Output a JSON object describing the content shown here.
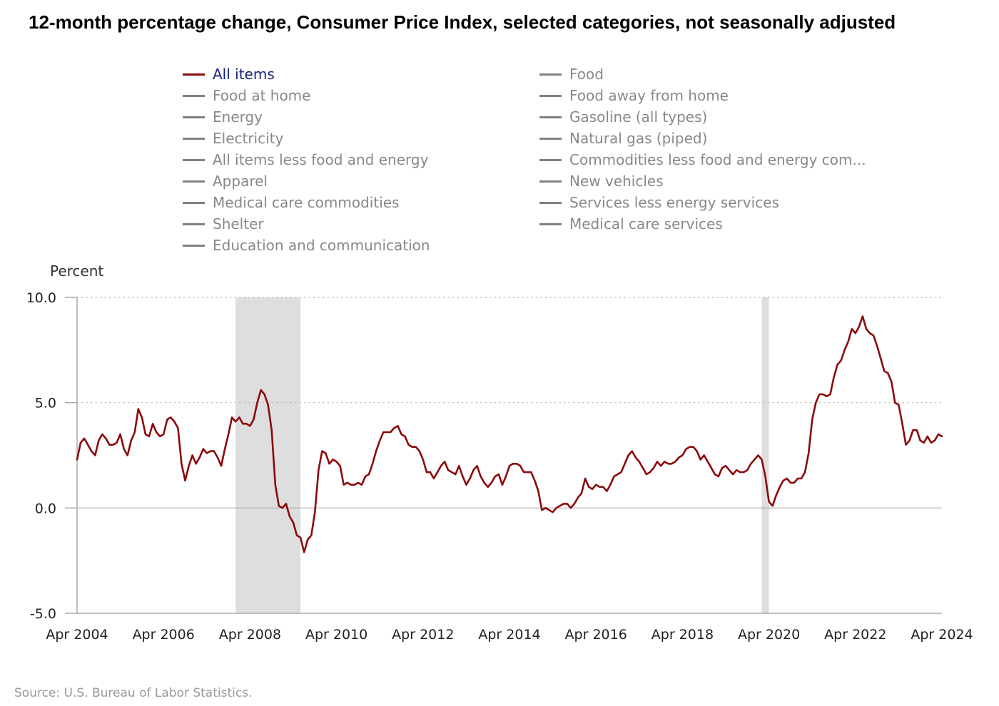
{
  "chart_data": {
    "type": "line",
    "title": "12-month percentage change, Consumer Price Index, selected categories, not seasonally adjusted",
    "ylabel": "Percent",
    "ylim": [
      -5.0,
      10.0
    ],
    "yticks": [
      "10.0",
      "5.0",
      "0.0",
      "-5.0"
    ],
    "xtick_labels": [
      "Apr 2004",
      "Apr 2006",
      "Apr 2008",
      "Apr 2010",
      "Apr 2012",
      "Apr 2014",
      "Apr 2016",
      "Apr 2018",
      "Apr 2020",
      "Apr 2022",
      "Apr 2024"
    ],
    "x_range": [
      "2004-04",
      "2024-04"
    ],
    "grid": "dotted horizontal lines at 5.0 and 10.0; solid line at 0.0",
    "legend_position": "top",
    "recessions": [
      {
        "start": "2007-12",
        "end": "2009-06"
      },
      {
        "start": "2020-02",
        "end": "2020-04"
      }
    ],
    "colors": {
      "active_series": "#8b0a0a",
      "inactive_series": "#808080",
      "active_label": "#1a237e",
      "inactive_label": "#888888",
      "recession_band": "#dedede",
      "axis": "#a8a8a8"
    },
    "legend": [
      {
        "name": "All items",
        "active": true
      },
      {
        "name": "Food at home",
        "active": false
      },
      {
        "name": "Energy",
        "active": false
      },
      {
        "name": "Electricity",
        "active": false
      },
      {
        "name": "All items less food and energy",
        "active": false
      },
      {
        "name": "Apparel",
        "active": false
      },
      {
        "name": "Medical care commodities",
        "active": false
      },
      {
        "name": "Shelter",
        "active": false
      },
      {
        "name": "Education and communication",
        "active": false
      },
      {
        "name": "Food",
        "active": false
      },
      {
        "name": "Food away from home",
        "active": false
      },
      {
        "name": "Gasoline (all types)",
        "active": false
      },
      {
        "name": "Natural gas (piped)",
        "active": false
      },
      {
        "name": "Commodities less food and energy com...",
        "active": false
      },
      {
        "name": "New vehicles",
        "active": false
      },
      {
        "name": "Services less energy services",
        "active": false
      },
      {
        "name": "Medical care services",
        "active": false
      }
    ],
    "series": [
      {
        "name": "All items",
        "start": "2004-04",
        "frequency": "monthly",
        "values": [
          2.3,
          3.1,
          3.3,
          3.0,
          2.7,
          2.5,
          3.2,
          3.5,
          3.3,
          3.0,
          3.0,
          3.1,
          3.5,
          2.8,
          2.5,
          3.2,
          3.6,
          4.7,
          4.3,
          3.5,
          3.4,
          4.0,
          3.6,
          3.4,
          3.5,
          4.2,
          4.3,
          4.1,
          3.8,
          2.1,
          1.3,
          2.0,
          2.5,
          2.1,
          2.4,
          2.8,
          2.6,
          2.7,
          2.7,
          2.4,
          2.0,
          2.8,
          3.5,
          4.3,
          4.1,
          4.3,
          4.0,
          4.0,
          3.9,
          4.2,
          5.0,
          5.6,
          5.4,
          4.9,
          3.7,
          1.1,
          0.1,
          0.0,
          0.2,
          -0.4,
          -0.7,
          -1.3,
          -1.4,
          -2.1,
          -1.5,
          -1.3,
          -0.2,
          1.8,
          2.7,
          2.6,
          2.1,
          2.3,
          2.2,
          2.0,
          1.1,
          1.2,
          1.1,
          1.1,
          1.2,
          1.1,
          1.5,
          1.6,
          2.1,
          2.7,
          3.2,
          3.6,
          3.6,
          3.6,
          3.8,
          3.9,
          3.5,
          3.4,
          3.0,
          2.9,
          2.9,
          2.7,
          2.3,
          1.7,
          1.7,
          1.4,
          1.7,
          2.0,
          2.2,
          1.8,
          1.7,
          1.6,
          2.0,
          1.5,
          1.1,
          1.4,
          1.8,
          2.0,
          1.5,
          1.2,
          1.0,
          1.2,
          1.5,
          1.6,
          1.1,
          1.5,
          2.0,
          2.1,
          2.1,
          2.0,
          1.7,
          1.7,
          1.7,
          1.3,
          0.8,
          -0.1,
          0.0,
          -0.1,
          -0.2,
          0.0,
          0.1,
          0.2,
          0.2,
          0.0,
          0.2,
          0.5,
          0.7,
          1.4,
          1.0,
          0.9,
          1.1,
          1.0,
          1.0,
          0.8,
          1.1,
          1.5,
          1.6,
          1.7,
          2.1,
          2.5,
          2.7,
          2.4,
          2.2,
          1.9,
          1.6,
          1.7,
          1.9,
          2.2,
          2.0,
          2.2,
          2.1,
          2.1,
          2.2,
          2.4,
          2.5,
          2.8,
          2.9,
          2.9,
          2.7,
          2.3,
          2.5,
          2.2,
          1.9,
          1.6,
          1.5,
          1.9,
          2.0,
          1.8,
          1.6,
          1.8,
          1.7,
          1.7,
          1.8,
          2.1,
          2.3,
          2.5,
          2.3,
          1.5,
          0.3,
          0.1,
          0.6,
          1.0,
          1.3,
          1.4,
          1.2,
          1.2,
          1.4,
          1.4,
          1.7,
          2.6,
          4.2,
          5.0,
          5.4,
          5.4,
          5.3,
          5.4,
          6.2,
          6.8,
          7.0,
          7.5,
          7.9,
          8.5,
          8.3,
          8.6,
          9.1,
          8.5,
          8.3,
          8.2,
          7.7,
          7.1,
          6.5,
          6.4,
          6.0,
          5.0,
          4.9,
          4.0,
          3.0,
          3.2,
          3.7,
          3.7,
          3.2,
          3.1,
          3.4,
          3.1,
          3.2,
          3.5,
          3.4
        ]
      }
    ]
  },
  "source_note": "Source: U.S. Bureau of Labor Statistics."
}
